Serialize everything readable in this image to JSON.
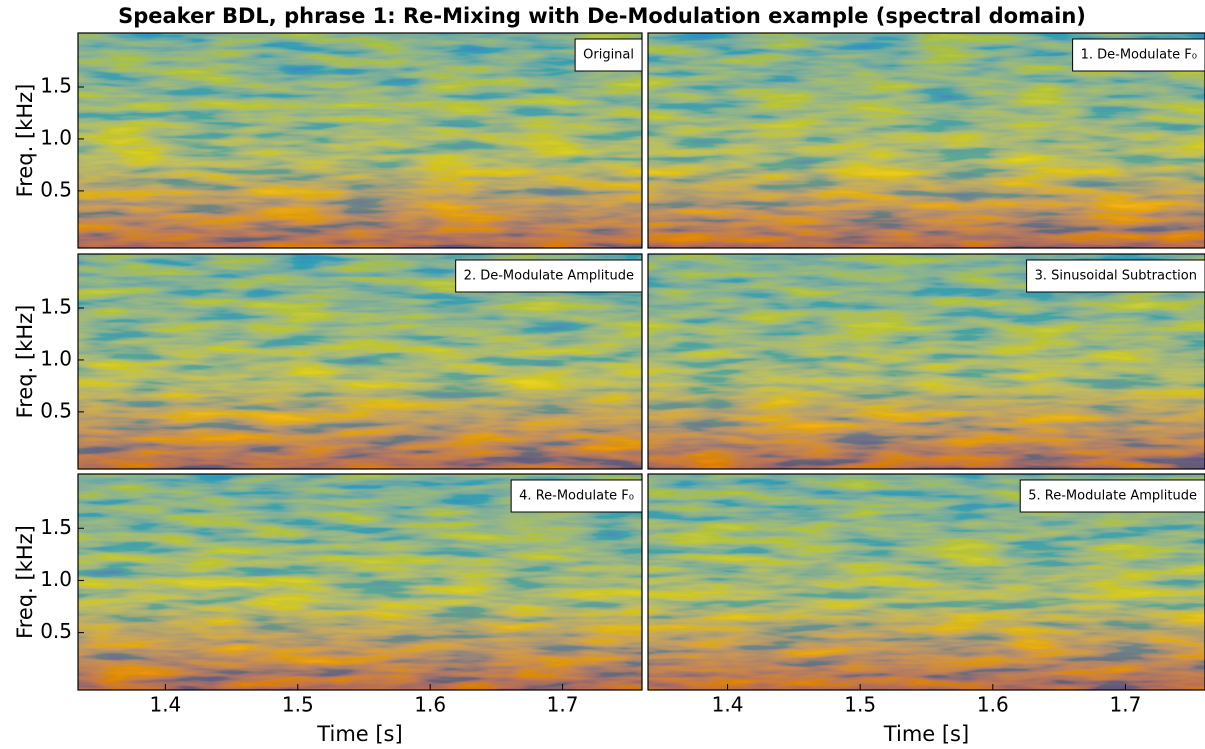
{
  "title": "Speaker BDL, phrase 1: Re-Mixing with De-Modulation example (spectral domain)",
  "chart_data": [
    {
      "type": "heatmap",
      "label": "Original",
      "xlim": [
        1.334,
        1.76
      ],
      "ylim": [
        -0.05,
        2.02
      ],
      "yticks": [
        0.5,
        {
          "value": 1,
          "label": "1.0"
        },
        1.5
      ],
      "ylabel": "Freq. [kHz]"
    },
    {
      "type": "heatmap",
      "label": "1. De-Modulate F₀",
      "xlim": [
        1.34,
        1.76
      ],
      "ylim": [
        -0.05,
        2.02
      ]
    },
    {
      "type": "heatmap",
      "label": "2. De-Modulate Amplitude",
      "xlim": [
        1.334,
        1.76
      ],
      "ylim": [
        -0.05,
        2.02
      ],
      "yticks": [
        0.5,
        {
          "value": 1,
          "label": "1.0"
        },
        1.5
      ],
      "ylabel": "Freq. [kHz]"
    },
    {
      "type": "heatmap",
      "label": "3. Sinusoidal Subtraction",
      "xlim": [
        1.34,
        1.76
      ],
      "ylim": [
        -0.05,
        2.02
      ]
    },
    {
      "type": "heatmap",
      "label": "4. Re-Modulate F₀",
      "xlim": [
        1.334,
        1.76
      ],
      "ylim": [
        -0.05,
        2.02
      ],
      "yticks": [
        0.5,
        {
          "value": 1,
          "label": "1.0"
        },
        1.5
      ],
      "ylabel": "Freq. [kHz]",
      "xticks": [
        1.4,
        1.5,
        1.6,
        1.7
      ],
      "xlabel": "Time [s]"
    },
    {
      "type": "heatmap",
      "label": "5. Re-Modulate Amplitude",
      "xlim": [
        1.34,
        1.76
      ],
      "ylim": [
        -0.05,
        2.02
      ],
      "xticks": [
        1.4,
        1.5,
        1.6,
        1.7
      ],
      "xlabel": "Time [s]"
    }
  ]
}
